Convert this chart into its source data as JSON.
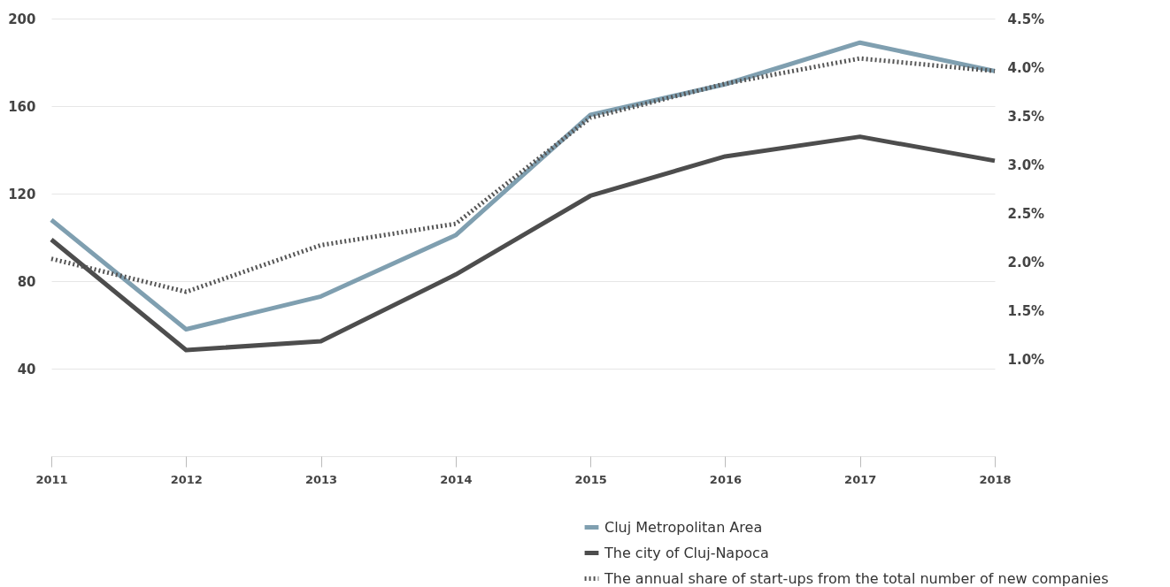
{
  "chart_data": {
    "type": "line",
    "categories": [
      "2011",
      "2012",
      "2013",
      "2014",
      "2015",
      "2016",
      "2017",
      "2018"
    ],
    "series": [
      {
        "name": "Cluj Metropolitan Area",
        "color": "#7f9fb0",
        "line_style": "solid",
        "values": [
          108,
          58,
          73,
          101,
          156,
          170,
          189,
          176
        ]
      },
      {
        "name": "The city of Cluj-Napoca",
        "color": "#4d4d4d",
        "line_style": "solid",
        "values": [
          99,
          48.5,
          52.5,
          83,
          119,
          137,
          146,
          135
        ]
      },
      {
        "name": "The annual share of start-ups from the total number of new companies",
        "color": "#555555",
        "line_style": "dotted",
        "axis": "y2",
        "values": [
          2.03,
          1.69,
          2.17,
          2.39,
          3.48,
          3.83,
          4.09,
          3.96
        ]
      }
    ],
    "ylim": [
      0,
      200
    ],
    "yticks": [
      {
        "value": 0,
        "label": null
      },
      40,
      80,
      120,
      160,
      200
    ],
    "y2lim": [
      0,
      4.5
    ],
    "y2ticks": [
      {
        "value": 1,
        "label": "1.0%"
      },
      {
        "value": 1.5,
        "label": "1.5%"
      },
      {
        "value": 2,
        "label": "2.0%"
      },
      {
        "value": 2.5,
        "label": "2.5%"
      },
      {
        "value": 3,
        "label": "3.0%"
      },
      {
        "value": 3.5,
        "label": "3.5%"
      },
      {
        "value": 4,
        "label": "4.0%"
      },
      {
        "value": 4.5,
        "label": "4.5%"
      }
    ],
    "grid": "y",
    "legend": "bottom"
  }
}
